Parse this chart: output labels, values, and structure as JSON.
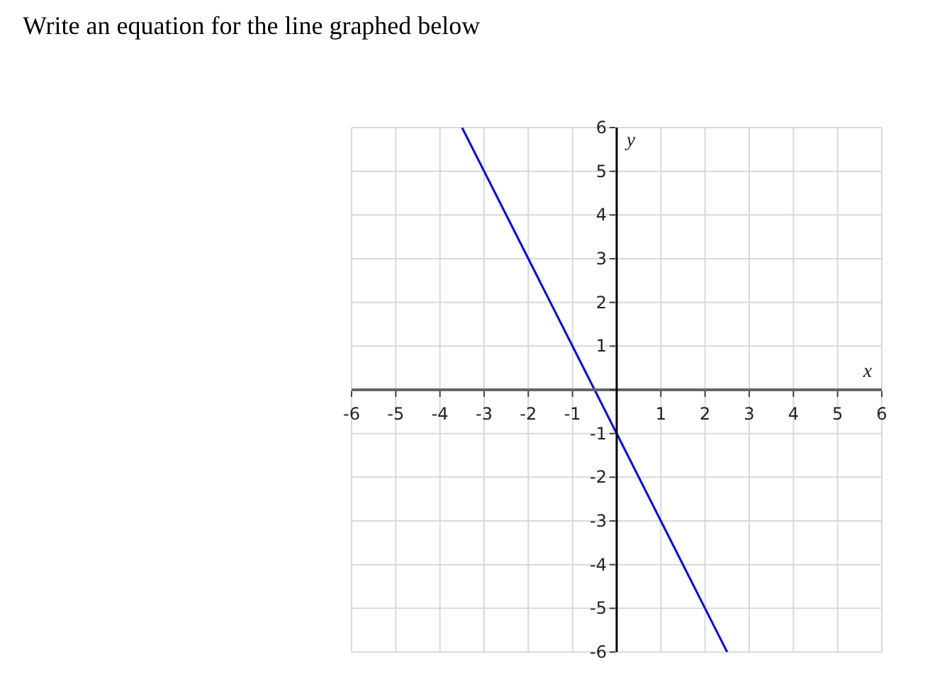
{
  "chart_data": {
    "type": "line",
    "title": "Write an equation for the line graphed below",
    "xlabel": "x",
    "ylabel": "y",
    "x": [
      -3.5,
      2.5
    ],
    "series": [
      {
        "color": "#0000ff",
        "values": [
          6,
          -6
        ]
      }
    ],
    "xlim": [
      -6,
      6
    ],
    "ylim": [
      -6,
      6
    ],
    "xticks": [
      -6,
      -5,
      -4,
      -3,
      -2,
      -1,
      {
        "value": 0,
        "label": null
      },
      1,
      2,
      3,
      4,
      5,
      6
    ],
    "yticks": [
      -6,
      -5,
      -4,
      -3,
      -2,
      -1,
      {
        "value": 0,
        "label": null
      },
      1,
      2,
      3,
      4,
      5,
      6
    ],
    "grid": true,
    "marker": "none",
    "line_style": "solid"
  }
}
